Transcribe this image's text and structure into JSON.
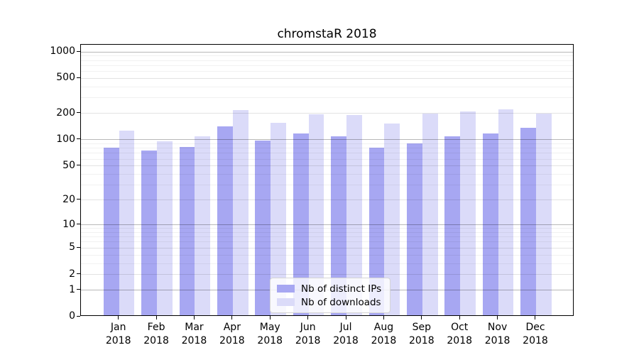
{
  "title": "chromstaR 2018",
  "colors": {
    "bar_dark": "#a7a7f2",
    "bar_light": "#dbdbf9",
    "background": "#ffffff",
    "axis": "#000000"
  },
  "legend": {
    "items": [
      {
        "label": "Nb of distinct IPs",
        "color_key": "bar_dark"
      },
      {
        "label": "Nb of downloads",
        "color_key": "bar_light"
      }
    ],
    "position": "lower center"
  },
  "chart_data": {
    "type": "bar",
    "title": "chromstaR 2018",
    "categories": [
      "Jan",
      "Feb",
      "Mar",
      "Apr",
      "May",
      "Jun",
      "Jul",
      "Aug",
      "Sep",
      "Oct",
      "Nov",
      "Dec"
    ],
    "year_label": "2018",
    "series": [
      {
        "name": "Nb of distinct IPs",
        "values": [
          78,
          73,
          80,
          136,
          94,
          114,
          106,
          78,
          87,
          106,
          113,
          133
        ]
      },
      {
        "name": "Nb of downloads",
        "values": [
          123,
          92,
          106,
          210,
          150,
          187,
          186,
          147,
          192,
          201,
          214,
          192
        ]
      }
    ],
    "xlabel": "",
    "ylabel": "",
    "yscale": "log1p",
    "yticks": [
      0,
      1,
      2,
      5,
      10,
      20,
      50,
      100,
      200,
      500,
      1000
    ],
    "ylim": [
      0,
      1200
    ],
    "grid": true,
    "legend_position": "lower center"
  }
}
